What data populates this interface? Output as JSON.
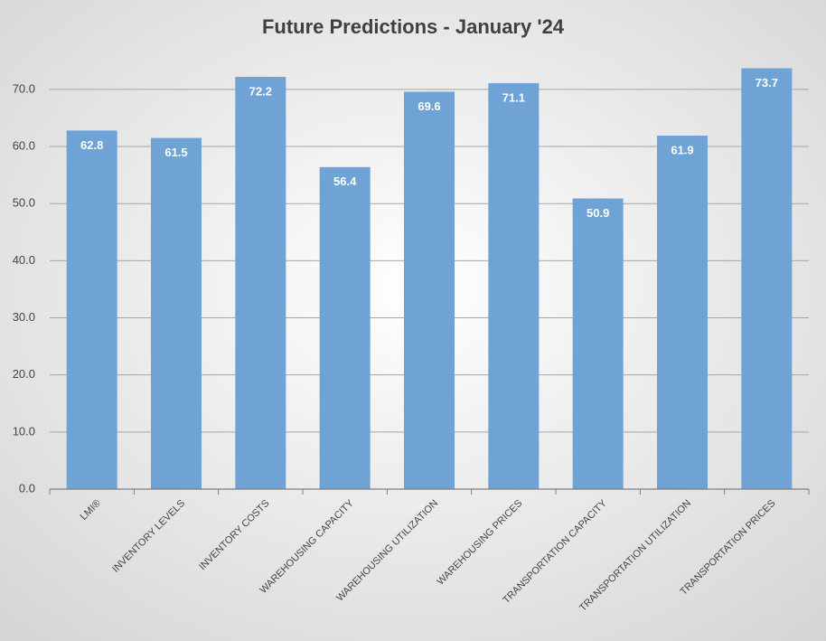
{
  "chart_data": {
    "type": "bar",
    "title": "Future Predictions - January '24",
    "categories": [
      "LMI®",
      "INVENTORY LEVELS",
      "INVENTORY COSTS",
      "WAREHOUSING CAPACITY",
      "WAREHOUSING UTILIZATION",
      "WAREHOUSING PRICES",
      "TRANSPORTATION CAPACITY",
      "TRANSPORTATION UTILIZATION",
      "TRANSPORTATION PRICES"
    ],
    "values": [
      62.8,
      61.5,
      72.2,
      56.4,
      69.6,
      71.1,
      50.9,
      61.9,
      73.7
    ],
    "color": "#6fa3d6",
    "ylim": [
      0,
      76
    ],
    "yticks": [
      {
        "value": 0,
        "label": "0.0"
      },
      {
        "value": 10,
        "label": "10.0"
      },
      {
        "value": 20,
        "label": "20.0"
      },
      {
        "value": 30,
        "label": "30.0"
      },
      {
        "value": 40,
        "label": "40.0"
      },
      {
        "value": 50,
        "label": "50.0"
      },
      {
        "value": 60,
        "label": "60.0"
      },
      {
        "value": 70,
        "label": "70.0"
      }
    ],
    "grid": true
  }
}
